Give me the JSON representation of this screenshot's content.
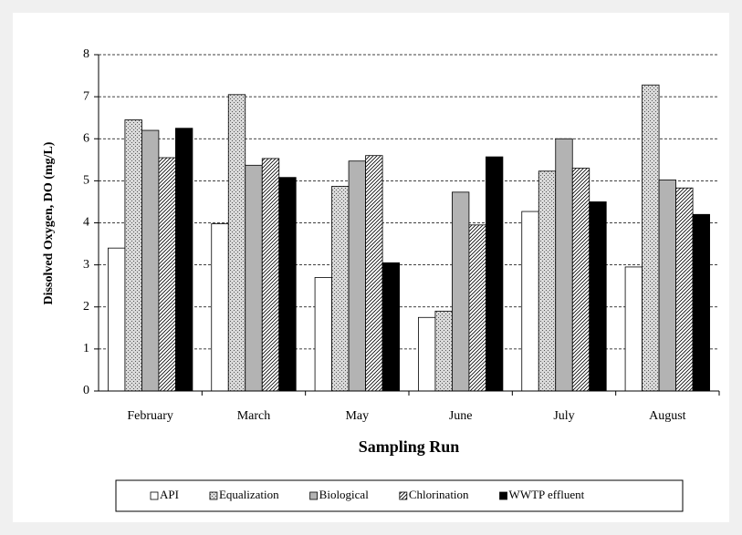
{
  "chart_data": {
    "type": "bar",
    "xlabel": "Sampling Run",
    "ylabel": "Dissolved Oxygen, DO (mg/L)",
    "categories": [
      "February",
      "March",
      "May",
      "June",
      "July",
      "August"
    ],
    "series": [
      {
        "name": "API",
        "color": "#ffffff",
        "values": [
          3.4,
          3.98,
          2.7,
          1.75,
          4.27,
          2.95
        ]
      },
      {
        "name": "Equalization",
        "color": "#d9d9d9",
        "pattern": "dots",
        "values": [
          6.45,
          7.05,
          4.87,
          1.9,
          5.23,
          7.28
        ]
      },
      {
        "name": "Biological",
        "color": "#b3b3b3",
        "values": [
          6.2,
          5.37,
          5.47,
          4.73,
          6.0,
          5.02
        ]
      },
      {
        "name": "Chlorination",
        "color": "#ffffff",
        "pattern": "hatch",
        "values": [
          5.55,
          5.53,
          5.6,
          3.95,
          5.3,
          4.83
        ]
      },
      {
        "name": "WWTP effluent",
        "color": "#000000",
        "values": [
          6.25,
          5.08,
          3.05,
          5.57,
          4.5,
          4.2
        ]
      }
    ],
    "ylim": [
      0,
      8
    ],
    "yticks": [
      0,
      1,
      2,
      3,
      4,
      5,
      6,
      7,
      8
    ],
    "grid": true,
    "legend": "bottom"
  }
}
